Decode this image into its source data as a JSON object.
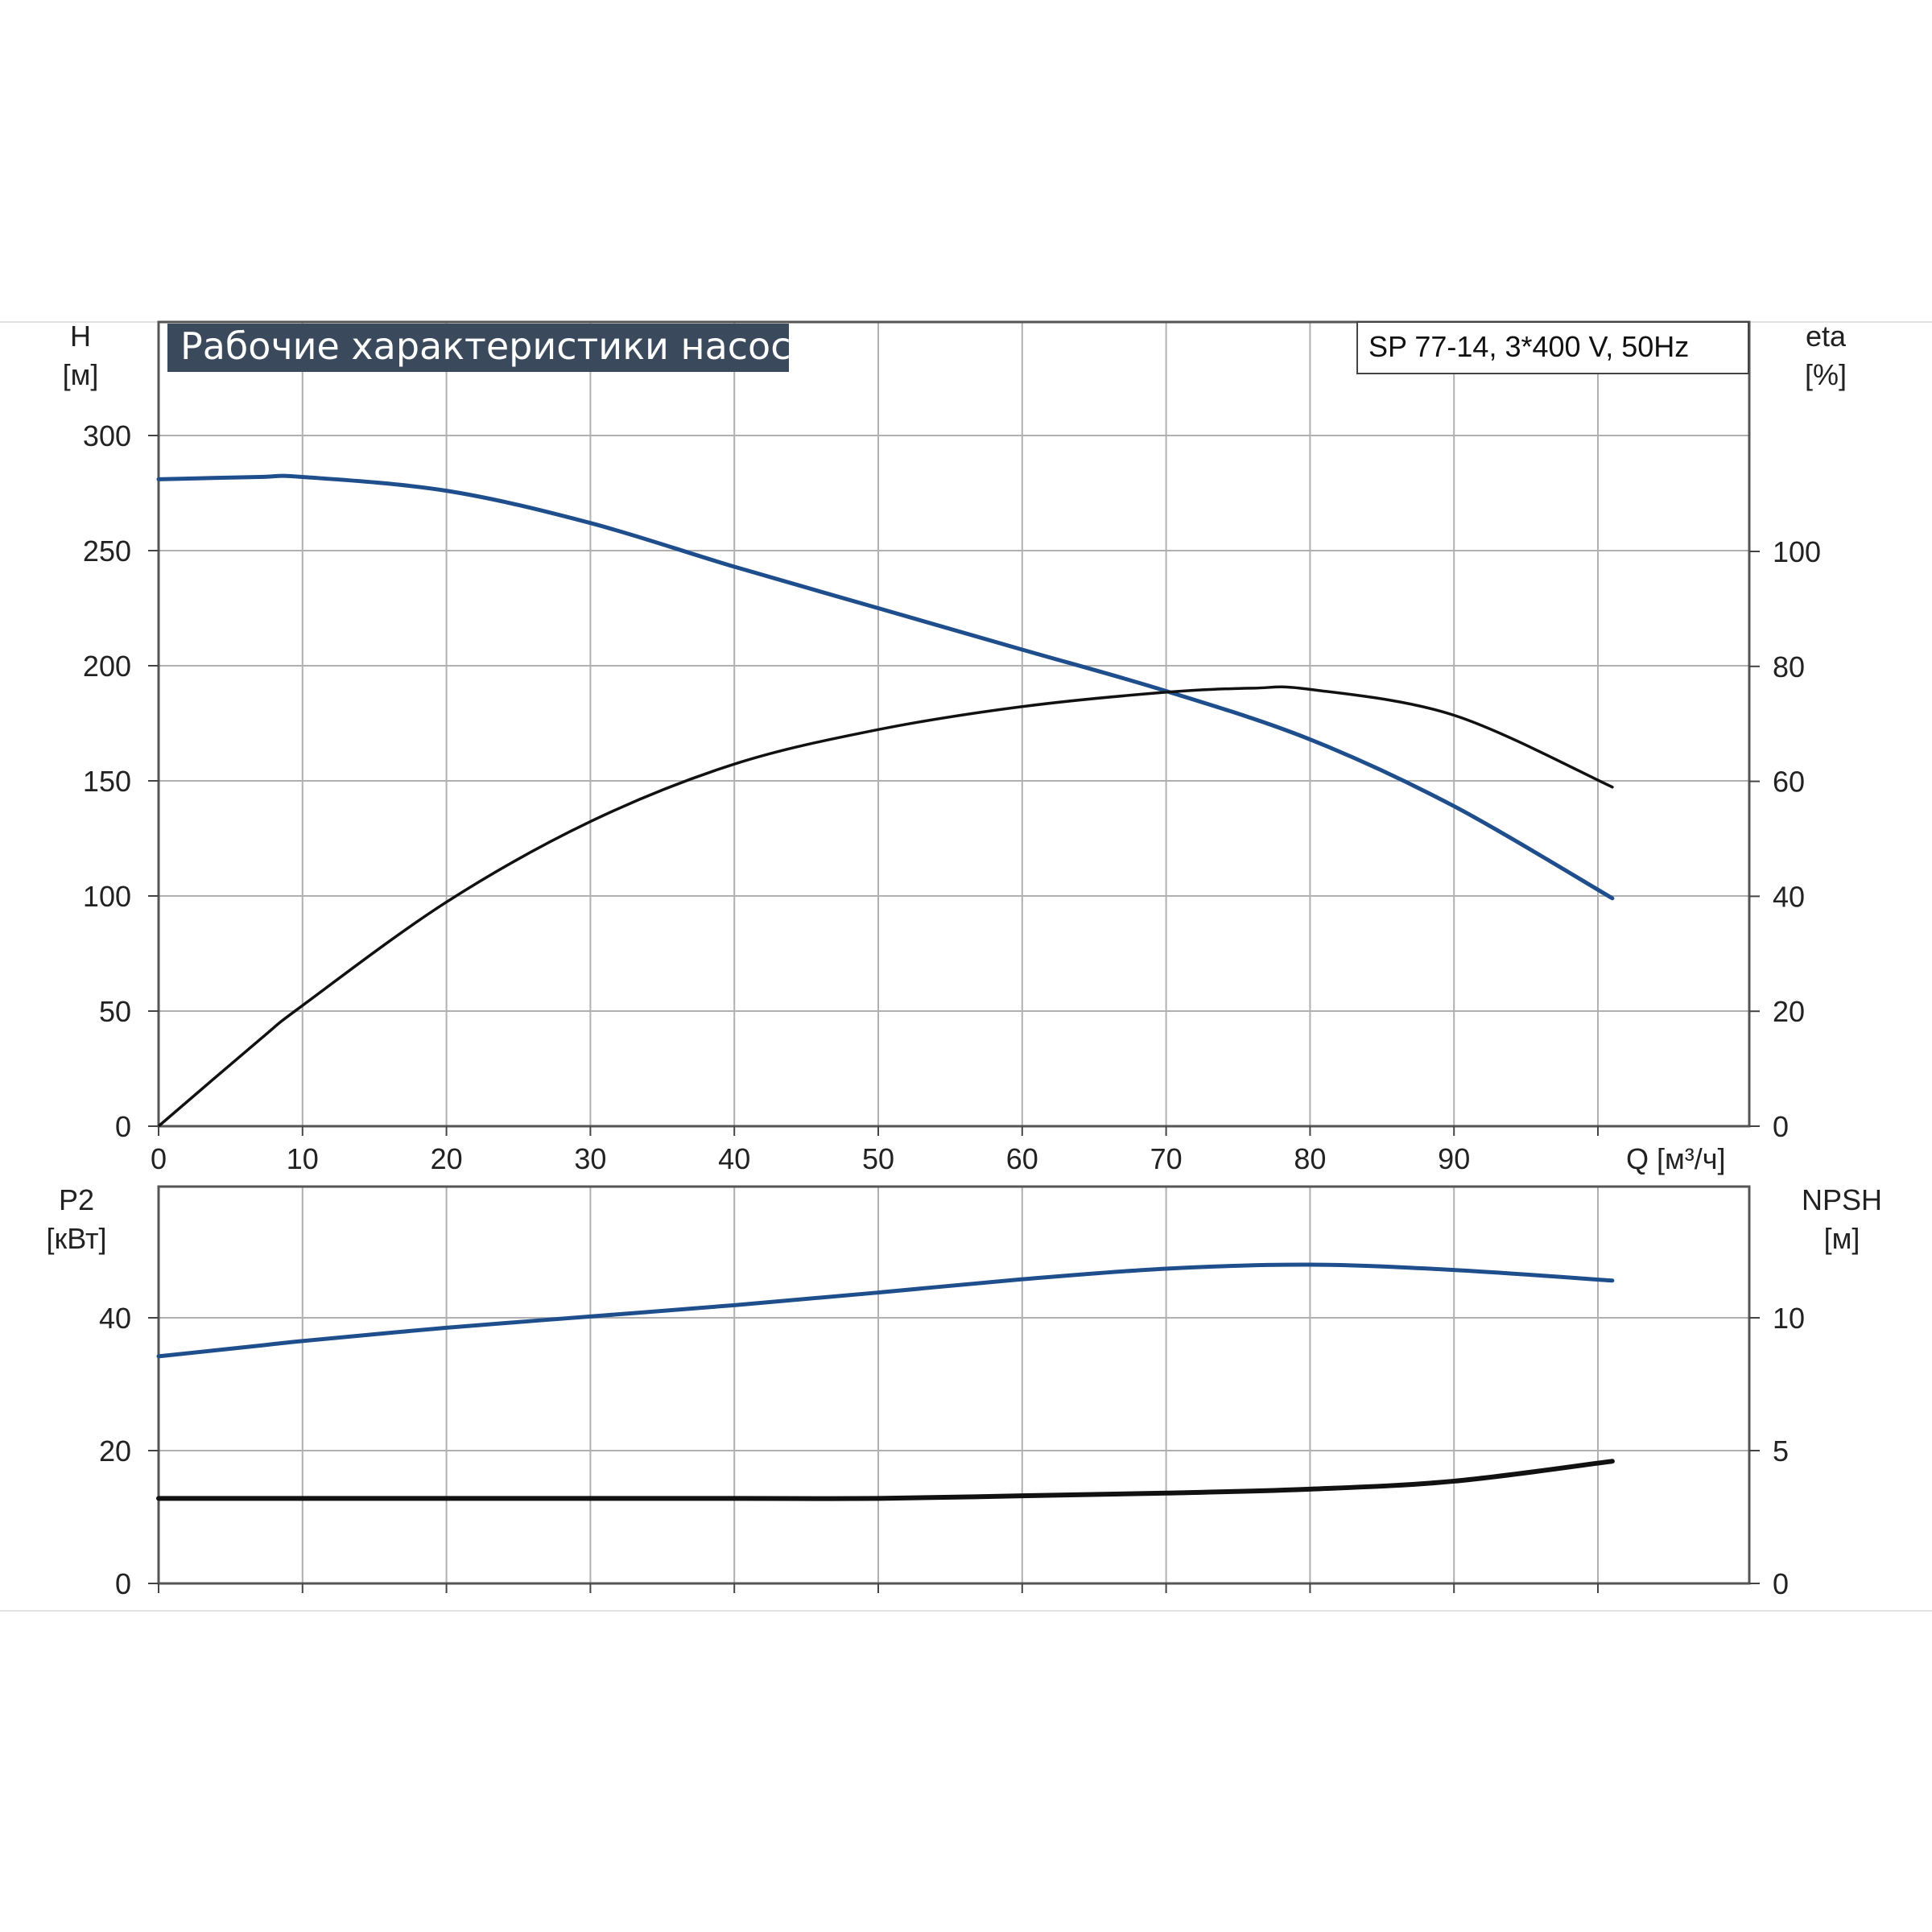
{
  "title": "Рабочие характеристики насоса",
  "model_label": "SP 77-14, 3*400 V, 50Hz",
  "colors": {
    "blue": "#1f4e8c",
    "black": "#111111",
    "title_bg": "#3a4a5c"
  },
  "chart_data": [
    {
      "type": "line",
      "x_axis": {
        "label": "Q [м³/ч]",
        "range": [
          0,
          110
        ],
        "ticks": [
          0,
          10,
          20,
          30,
          40,
          50,
          60,
          70,
          80,
          90
        ]
      },
      "y_left": {
        "label_line1": "H",
        "label_line2": "[м]",
        "range": [
          0,
          300
        ],
        "ticks": [
          0,
          50,
          100,
          150,
          200,
          250,
          300
        ]
      },
      "y_right": {
        "label_line1": "eta",
        "label_line2": "[%]",
        "range": [
          0,
          120
        ],
        "ticks": [
          0,
          20,
          40,
          60,
          80,
          100
        ]
      },
      "grid": true,
      "series": [
        {
          "axis": "left",
          "color": "blue",
          "x": [
            0,
            7,
            10,
            20,
            30,
            40,
            50,
            60,
            70,
            80,
            90,
            101
          ],
          "y": [
            281,
            282,
            282,
            276,
            262,
            243,
            225,
            207,
            189,
            168,
            139,
            99
          ]
        },
        {
          "axis": "right",
          "color": "black",
          "x": [
            0,
            7,
            10,
            20,
            30,
            40,
            50,
            60,
            70,
            76,
            80,
            90,
            101
          ],
          "y": [
            0,
            15,
            21,
            39,
            53,
            63,
            69,
            73,
            75.5,
            76.2,
            76,
            71.5,
            59
          ]
        }
      ]
    },
    {
      "type": "line",
      "x_axis": {
        "range": [
          0,
          110
        ]
      },
      "y_left": {
        "label_line1": "P2",
        "label_line2": "[кВт]",
        "range": [
          0,
          60
        ],
        "ticks": [
          0,
          20,
          40
        ]
      },
      "y_right": {
        "label_line1": "NPSH",
        "label_line2": "[м]",
        "range": [
          0,
          15
        ],
        "ticks": [
          0,
          5,
          10
        ]
      },
      "grid": true,
      "series": [
        {
          "axis": "left",
          "color": "blue",
          "x": [
            0,
            7,
            10,
            20,
            30,
            40,
            50,
            60,
            70,
            80,
            90,
            101
          ],
          "y": [
            34.2,
            35.8,
            36.5,
            38.5,
            40.2,
            41.9,
            43.8,
            45.8,
            47.4,
            48.0,
            47.2,
            45.6
          ]
        },
        {
          "axis": "right",
          "color": "black",
          "x": [
            0,
            7,
            10,
            20,
            30,
            40,
            50,
            60,
            70,
            80,
            90,
            101
          ],
          "y": [
            3.2,
            3.2,
            3.2,
            3.2,
            3.2,
            3.2,
            3.2,
            3.3,
            3.4,
            3.55,
            3.85,
            4.6
          ]
        }
      ]
    }
  ]
}
